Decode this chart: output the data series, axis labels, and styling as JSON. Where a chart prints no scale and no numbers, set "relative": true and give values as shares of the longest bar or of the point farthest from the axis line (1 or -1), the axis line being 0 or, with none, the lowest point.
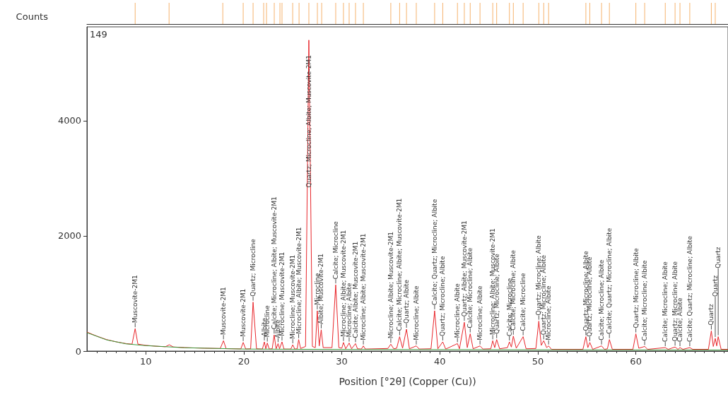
{
  "chart_data": [
    {
      "type": "bar",
      "color": "#f5b36e",
      "relative": true,
      "xlim": [
        4,
        69.4
      ],
      "xticks": [
        10,
        20,
        30,
        40,
        50,
        60
      ],
      "tick_labels": false,
      "x": [
        8.92,
        12.38,
        17.86,
        19.94,
        20.95,
        22.03,
        22.32,
        23.11,
        23.69,
        23.9,
        24.99,
        25.64,
        26.64,
        27.51,
        27.95,
        29.38,
        30.17,
        30.75,
        31.4,
        32.2,
        35.0,
        35.9,
        36.6,
        37.6,
        39.47,
        40.3,
        41.8,
        42.5,
        43.1,
        44.1,
        45.4,
        45.8,
        47.1,
        47.5,
        48.5,
        50.1,
        50.6,
        51.1,
        54.9,
        55.3,
        56.5,
        57.3,
        60.0,
        60.9,
        63.0,
        64.0,
        64.5,
        65.5,
        67.7,
        68.1
      ],
      "values": [
        1,
        1,
        1,
        1,
        1,
        1,
        1,
        1,
        1,
        1,
        1,
        1,
        1,
        1,
        1,
        1,
        1,
        1,
        1,
        1,
        1,
        1,
        1,
        1,
        1,
        1,
        1,
        1,
        1,
        1,
        1,
        1,
        1,
        1,
        1,
        1,
        1,
        1,
        1,
        1,
        1,
        1,
        1,
        1,
        1,
        1,
        1,
        1,
        1,
        1
      ]
    },
    {
      "type": "line",
      "ylabel": "Counts",
      "xlabel": "Position [°2θ] (Copper (Cu))",
      "xlim": [
        4,
        69.4
      ],
      "ylim": [
        0,
        5630
      ],
      "xticks": [
        10,
        20,
        30,
        40,
        50,
        60
      ],
      "yticks": [
        0,
        2000,
        4000
      ],
      "series": [
        {
          "color": "#e8262b",
          "x": [
            4,
            5,
            6,
            7,
            8,
            8.6,
            8.92,
            9.2,
            10,
            11,
            12,
            12.4,
            12.8,
            14,
            16,
            17.6,
            17.93,
            18.2,
            19.7,
            19.94,
            20.2,
            20.7,
            20.95,
            21.3,
            21.9,
            22.1,
            22.25,
            22.4,
            22.6,
            22.9,
            23.1,
            23.3,
            23.5,
            23.65,
            23.9,
            24.1,
            24.8,
            25.0,
            25.2,
            25.45,
            25.6,
            25.8,
            26.3,
            26.64,
            27.0,
            27.3,
            27.5,
            27.7,
            27.9,
            28.1,
            29.0,
            29.38,
            29.7,
            30.0,
            30.17,
            30.4,
            30.75,
            31.0,
            31.4,
            31.6,
            32.0,
            32.2,
            32.4,
            34.7,
            35.0,
            35.3,
            35.6,
            35.9,
            36.2,
            36.6,
            36.9,
            37.6,
            37.9,
            39.1,
            39.47,
            39.8,
            40.3,
            40.6,
            41.8,
            42.0,
            42.5,
            42.8,
            43.1,
            43.4,
            44.1,
            44.4,
            45.2,
            45.4,
            45.6,
            45.8,
            46.1,
            46.9,
            47.1,
            47.3,
            47.5,
            47.8,
            48.5,
            48.8,
            49.8,
            50.1,
            50.35,
            50.6,
            50.9,
            51.1,
            51.4,
            54.6,
            54.9,
            55.1,
            55.3,
            55.6,
            56.5,
            56.8,
            57.1,
            57.3,
            57.6,
            59.7,
            60.0,
            60.3,
            60.9,
            61.2,
            63.0,
            63.3,
            64.0,
            64.3,
            64.5,
            64.8,
            65.5,
            65.8,
            67.4,
            67.7,
            67.9,
            68.1,
            68.25,
            68.4,
            68.7,
            69.4
          ],
          "values": [
            330,
            260,
            200,
            160,
            130,
            120,
            390,
            120,
            100,
            85,
            75,
            110,
            72,
            60,
            50,
            45,
            180,
            42,
            38,
            150,
            36,
            40,
            850,
            40,
            35,
            160,
            40,
            140,
            35,
            40,
            280,
            40,
            130,
            40,
            160,
            35,
            35,
            110,
            35,
            40,
            200,
            45,
            80,
            5400,
            80,
            60,
            700,
            90,
            370,
            60,
            60,
            1150,
            60,
            50,
            150,
            40,
            140,
            40,
            130,
            40,
            35,
            90,
            35,
            45,
            120,
            40,
            50,
            250,
            50,
            380,
            40,
            90,
            35,
            40,
            700,
            40,
            160,
            35,
            130,
            40,
            500,
            60,
            300,
            40,
            90,
            35,
            40,
            180,
            60,
            200,
            40,
            60,
            160,
            70,
            260,
            50,
            250,
            40,
            45,
            520,
            100,
            180,
            60,
            90,
            30,
            30,
            250,
            60,
            150,
            30,
            90,
            30,
            40,
            200,
            30,
            30,
            300,
            50,
            80,
            30,
            60,
            30,
            70,
            30,
            60,
            30,
            60,
            30,
            30,
            350,
            80,
            220,
            90,
            250,
            30,
            30
          ]
        },
        {
          "color": "#3c9a3c",
          "x": [
            4,
            6,
            8,
            10,
            14,
            20,
            30,
            40,
            50,
            60,
            69.4
          ],
          "values": [
            320,
            195,
            125,
            95,
            58,
            35,
            28,
            25,
            22,
            20,
            18
          ]
        }
      ],
      "annotations": [
        "149",
        {
          "text": "Muscovite-2M1",
          "x": 8.92,
          "y": 390
        },
        {
          "text": "Muscovite-2M1",
          "x": 17.93,
          "y": 180
        },
        {
          "text": "Muscovite-2M1",
          "x": 19.94,
          "y": 150
        },
        {
          "text": "Quartz; Microcline",
          "x": 20.95,
          "y": 850
        },
        {
          "text": "Albite",
          "x": 22.1,
          "y": 160
        },
        {
          "text": "Microcline",
          "x": 22.4,
          "y": 140
        },
        {
          "text": "Calcite; Microcline; Albite; Muscovite-2M1",
          "x": 23.1,
          "y": 280
        },
        {
          "text": "Albite",
          "x": 23.5,
          "y": 130
        },
        {
          "text": "Microcline; Muscovite-2M1",
          "x": 23.9,
          "y": 160
        },
        {
          "text": "Microcline; Muscovite-2M1",
          "x": 25.0,
          "y": 110
        },
        {
          "text": "Microcline; Albite; Muscovite-2M1",
          "x": 25.6,
          "y": 200
        },
        {
          "text": "Quartz; Microcline; Albite; Muscovite-2M1",
          "x": 26.64,
          "y": 5400
        },
        {
          "text": "Microcline",
          "x": 27.5,
          "y": 700
        },
        {
          "text": "Albite; Muscovite-2M1",
          "x": 27.9,
          "y": 370
        },
        {
          "text": "Calcite; Microcline",
          "x": 29.38,
          "y": 1150
        },
        {
          "text": "Microcline; Albite; Muscovite-2M1",
          "x": 30.17,
          "y": 150
        },
        {
          "text": "Microcline; Albite",
          "x": 30.75,
          "y": 140
        },
        {
          "text": "Calcite; Albite; Muscovite-2M1",
          "x": 31.4,
          "y": 130
        },
        {
          "text": "Microcline; Albite; Muscovite-2M1",
          "x": 32.2,
          "y": 90
        },
        {
          "text": "Microcline; Albite; Muscovite-2M1",
          "x": 35.0,
          "y": 120
        },
        {
          "text": "Calcite; Microcline; Albite; Muscovite-2M1",
          "x": 35.9,
          "y": 250
        },
        {
          "text": "Quartz; Albite",
          "x": 36.6,
          "y": 380
        },
        {
          "text": "Microcline; Albite",
          "x": 37.6,
          "y": 90
        },
        {
          "text": "Calcite; Quartz; Microcline; Albite",
          "x": 39.47,
          "y": 700
        },
        {
          "text": "Quartz; Microcline; Albite",
          "x": 40.3,
          "y": 160
        },
        {
          "text": "Microcline; Albite",
          "x": 41.8,
          "y": 130
        },
        {
          "text": "Quartz; Albite; Muscovite-2M1",
          "x": 42.5,
          "y": 500
        },
        {
          "text": "Calcite; Microcline; Albite",
          "x": 43.1,
          "y": 300
        },
        {
          "text": "Microcline; Albite",
          "x": 44.1,
          "y": 90
        },
        {
          "text": "Microcline; Albite; Muscovite-2M1",
          "x": 45.4,
          "y": 180
        },
        {
          "text": "Quartz; Microcline; Albite",
          "x": 45.8,
          "y": 200
        },
        {
          "text": "Calcite; Microcline",
          "x": 47.1,
          "y": 160
        },
        {
          "text": "Calcite; Microcline; Albite",
          "x": 47.5,
          "y": 260
        },
        {
          "text": "Calcite; Microcline",
          "x": 48.5,
          "y": 250
        },
        {
          "text": "Quartz; Microcline; Albite",
          "x": 50.1,
          "y": 520
        },
        {
          "text": "Quartz; Microcline; Albite",
          "x": 50.6,
          "y": 180
        },
        {
          "text": "Microcline; Albite",
          "x": 51.1,
          "y": 90
        },
        {
          "text": "Quartz; Microcline; Albite",
          "x": 54.9,
          "y": 250
        },
        {
          "text": "Quartz; Microcline; Albite",
          "x": 55.3,
          "y": 150
        },
        {
          "text": "Calcite; Microcline; Albite",
          "x": 56.5,
          "y": 90
        },
        {
          "text": "Calcite; Quartz; Microcline; Albite",
          "x": 57.3,
          "y": 200
        },
        {
          "text": "Quartz; Microcline; Albite",
          "x": 60.0,
          "y": 300
        },
        {
          "text": "Calcite; Microcline; Albite",
          "x": 60.9,
          "y": 80
        },
        {
          "text": "Calcite; Microcline; Albite",
          "x": 63.0,
          "y": 60
        },
        {
          "text": "Quartz; Microcline; Albite",
          "x": 64.0,
          "y": 70
        },
        {
          "text": "Calcite; Albite",
          "x": 64.5,
          "y": 60
        },
        {
          "text": "Calcite; Quartz; Microcline; Albite",
          "x": 65.5,
          "y": 60
        },
        {
          "text": "Quartz",
          "x": 67.7,
          "y": 350
        },
        {
          "text": "Quartz",
          "x": 68.1,
          "y": 220
        },
        {
          "text": "Quartz",
          "x": 68.4,
          "y": 250
        }
      ]
    }
  ]
}
